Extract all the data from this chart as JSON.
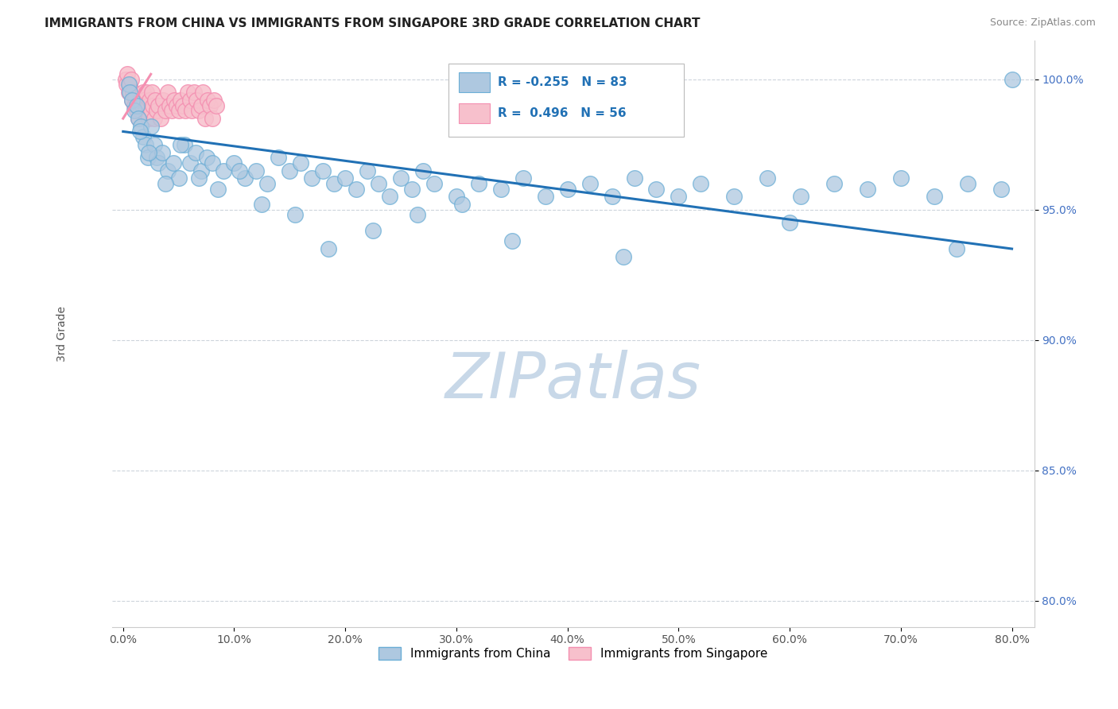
{
  "title": "IMMIGRANTS FROM CHINA VS IMMIGRANTS FROM SINGAPORE 3RD GRADE CORRELATION CHART",
  "source_text": "Source: ZipAtlas.com",
  "ylabel": "3rd Grade",
  "xlim": [
    -1.0,
    82.0
  ],
  "ylim": [
    79.0,
    101.5
  ],
  "xticks": [
    0.0,
    10.0,
    20.0,
    30.0,
    40.0,
    50.0,
    60.0,
    70.0,
    80.0
  ],
  "yticks": [
    80.0,
    85.0,
    90.0,
    95.0,
    100.0
  ],
  "ytick_labels": [
    "80.0%",
    "85.0%",
    "90.0%",
    "95.0%",
    "100.0%"
  ],
  "xtick_labels": [
    "0.0%",
    "10.0%",
    "20.0%",
    "30.0%",
    "40.0%",
    "50.0%",
    "60.0%",
    "70.0%",
    "80.0%"
  ],
  "legend_r_china": "-0.255",
  "legend_n_china": "83",
  "legend_r_singapore": "0.496",
  "legend_n_singapore": "56",
  "china_color": "#aec8e0",
  "china_edge_color": "#6baed6",
  "singapore_color": "#f7c0cc",
  "singapore_edge_color": "#f48fb1",
  "regression_china_color": "#2171b5",
  "watermark_text": "ZIPatlas",
  "watermark_color": "#c8d8e8",
  "background_color": "#ffffff",
  "china_reg_x0": 0.0,
  "china_reg_y0": 98.0,
  "china_reg_x1": 80.0,
  "china_reg_y1": 93.5,
  "china_scatter_x": [
    0.5,
    0.6,
    0.8,
    1.0,
    1.2,
    1.4,
    1.6,
    1.8,
    2.0,
    2.2,
    2.5,
    2.8,
    3.0,
    3.2,
    3.5,
    4.0,
    4.5,
    5.0,
    5.5,
    6.0,
    6.5,
    7.0,
    7.5,
    8.0,
    9.0,
    10.0,
    11.0,
    12.0,
    13.0,
    14.0,
    15.0,
    16.0,
    17.0,
    18.0,
    19.0,
    20.0,
    21.0,
    22.0,
    23.0,
    24.0,
    25.0,
    26.0,
    27.0,
    28.0,
    30.0,
    32.0,
    34.0,
    36.0,
    38.0,
    40.0,
    42.0,
    44.0,
    46.0,
    48.0,
    50.0,
    52.0,
    55.0,
    58.0,
    61.0,
    64.0,
    67.0,
    70.0,
    73.0,
    76.0,
    79.0,
    1.5,
    2.3,
    3.8,
    5.2,
    6.8,
    8.5,
    10.5,
    12.5,
    15.5,
    18.5,
    22.5,
    26.5,
    30.5,
    35.0,
    45.0,
    60.0,
    75.0,
    80.0
  ],
  "china_scatter_y": [
    99.8,
    99.5,
    99.2,
    98.8,
    99.0,
    98.5,
    98.2,
    97.8,
    97.5,
    97.0,
    98.2,
    97.5,
    97.0,
    96.8,
    97.2,
    96.5,
    96.8,
    96.2,
    97.5,
    96.8,
    97.2,
    96.5,
    97.0,
    96.8,
    96.5,
    96.8,
    96.2,
    96.5,
    96.0,
    97.0,
    96.5,
    96.8,
    96.2,
    96.5,
    96.0,
    96.2,
    95.8,
    96.5,
    96.0,
    95.5,
    96.2,
    95.8,
    96.5,
    96.0,
    95.5,
    96.0,
    95.8,
    96.2,
    95.5,
    95.8,
    96.0,
    95.5,
    96.2,
    95.8,
    95.5,
    96.0,
    95.5,
    96.2,
    95.5,
    96.0,
    95.8,
    96.2,
    95.5,
    96.0,
    95.8,
    98.0,
    97.2,
    96.0,
    97.5,
    96.2,
    95.8,
    96.5,
    95.2,
    94.8,
    93.5,
    94.2,
    94.8,
    95.2,
    93.8,
    93.2,
    94.5,
    93.5,
    100.0
  ],
  "singapore_scatter_x": [
    0.2,
    0.3,
    0.4,
    0.5,
    0.6,
    0.7,
    0.8,
    0.9,
    1.0,
    1.1,
    1.2,
    1.3,
    1.4,
    1.5,
    1.6,
    1.7,
    1.8,
    1.9,
    2.0,
    2.1,
    2.2,
    2.3,
    2.4,
    2.5,
    2.6,
    2.7,
    2.8,
    2.9,
    3.0,
    3.2,
    3.4,
    3.6,
    3.8,
    4.0,
    4.2,
    4.4,
    4.6,
    4.8,
    5.0,
    5.2,
    5.4,
    5.6,
    5.8,
    6.0,
    6.2,
    6.4,
    6.6,
    6.8,
    7.0,
    7.2,
    7.4,
    7.6,
    7.8,
    8.0,
    8.2,
    8.4
  ],
  "singapore_scatter_y": [
    100.0,
    99.8,
    100.2,
    99.5,
    99.8,
    100.0,
    99.2,
    99.5,
    99.0,
    99.3,
    98.8,
    99.0,
    98.5,
    99.2,
    98.8,
    99.0,
    99.5,
    99.2,
    98.8,
    99.5,
    99.0,
    98.5,
    99.2,
    98.8,
    99.5,
    99.0,
    98.5,
    99.2,
    98.8,
    99.0,
    98.5,
    99.2,
    98.8,
    99.5,
    99.0,
    98.8,
    99.2,
    99.0,
    98.8,
    99.2,
    99.0,
    98.8,
    99.5,
    99.2,
    98.8,
    99.5,
    99.2,
    98.8,
    99.0,
    99.5,
    98.5,
    99.2,
    99.0,
    98.5,
    99.2,
    99.0
  ]
}
